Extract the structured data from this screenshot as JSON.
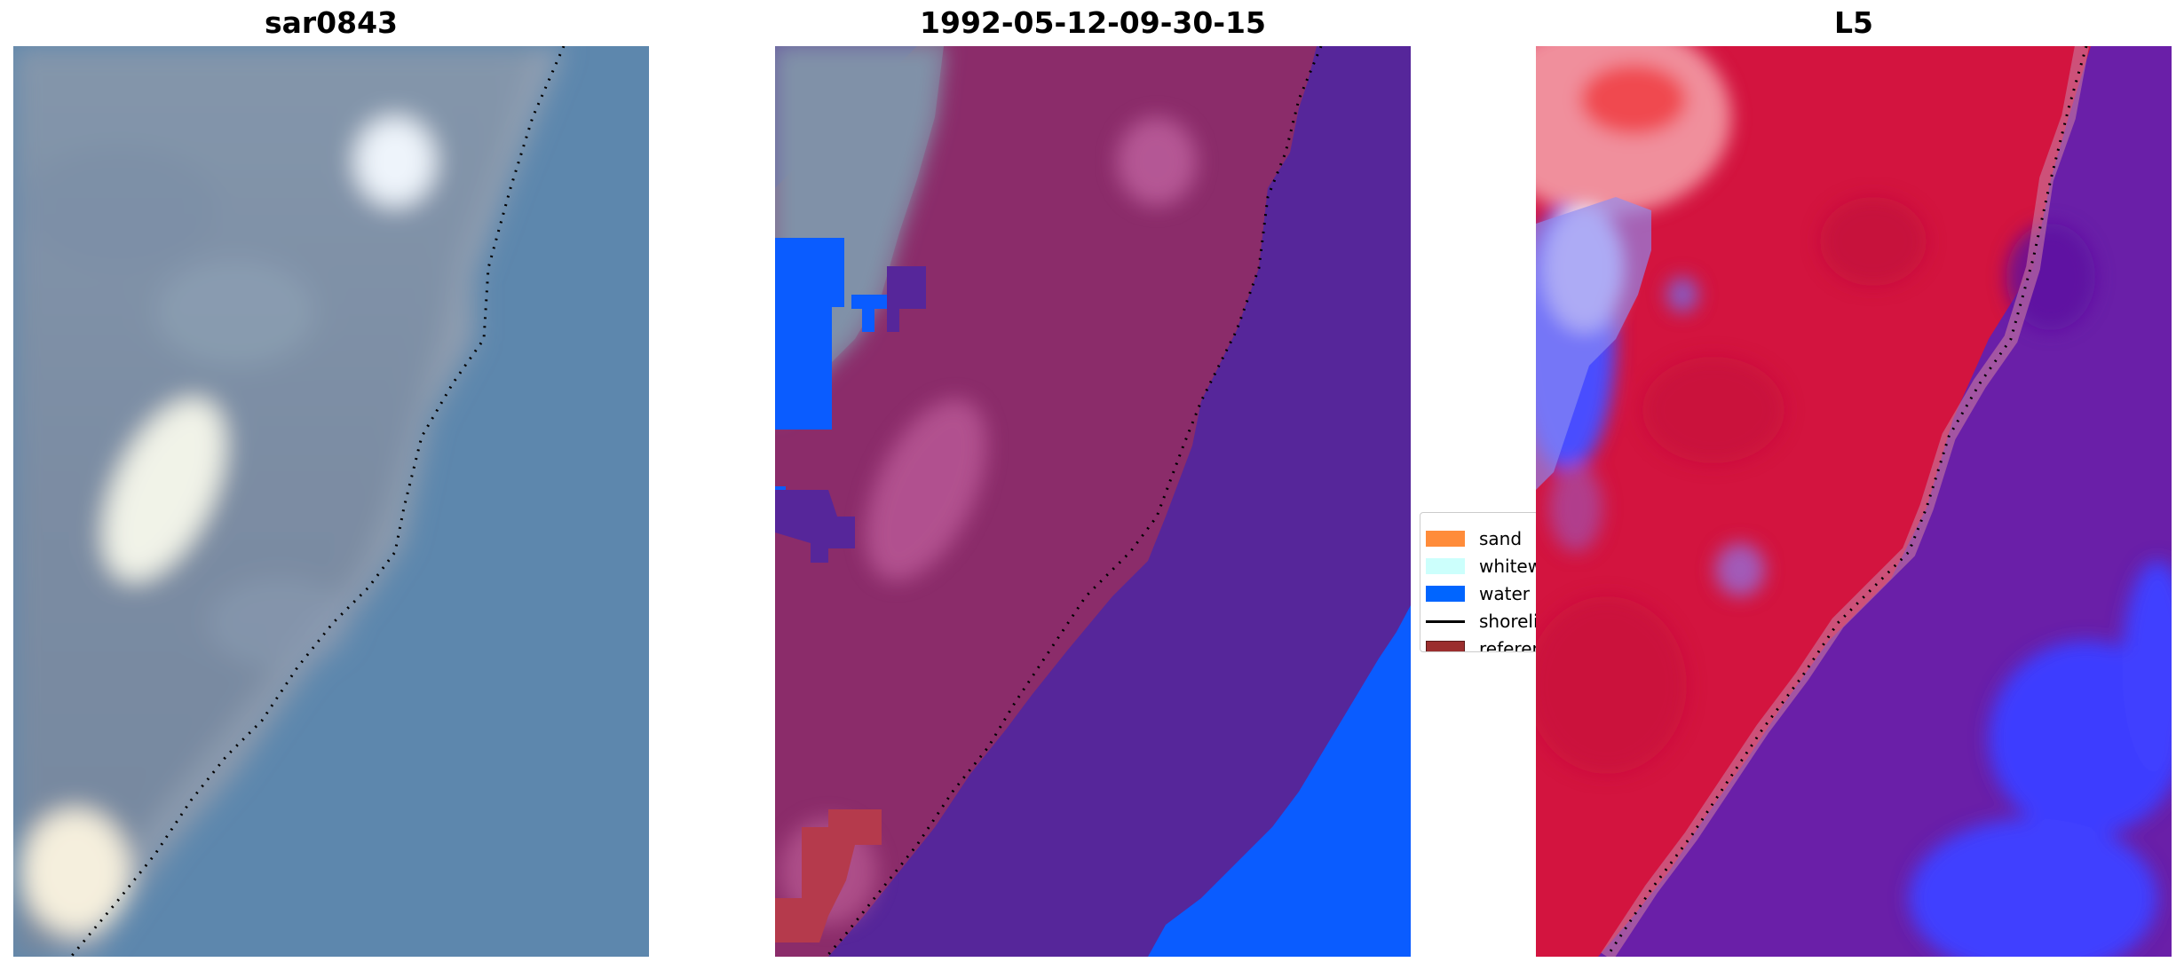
{
  "panels": [
    {
      "title": "sar0843",
      "kind": "rgb-image"
    },
    {
      "title": "1992-05-12-09-30-15",
      "kind": "classified-image"
    },
    {
      "title": "L5",
      "kind": "index-image"
    }
  ],
  "legend": {
    "items": [
      {
        "label": "sand",
        "color": "#ff8c3a",
        "type": "patch"
      },
      {
        "label": "whitewater",
        "color": "#ccfffc",
        "type": "patch"
      },
      {
        "label": "water",
        "color": "#0065ff",
        "type": "patch"
      },
      {
        "label": "shoreline",
        "color": "#000000",
        "type": "line"
      },
      {
        "label": "reference shoreline buffer",
        "color": "#9b2e2e",
        "type": "patch"
      }
    ]
  },
  "colors": {
    "land_rgb": "#7a8aa0",
    "sea_rgb": "#5e88ad",
    "class_land_overlay": "#8b2c6a",
    "class_water_overlay": "#56269a",
    "class_water": "#0a5cff",
    "index_red": "#d3143f",
    "index_purple": "#6a1fa8",
    "index_blue": "#3535ff",
    "shoreline": "#000000"
  }
}
